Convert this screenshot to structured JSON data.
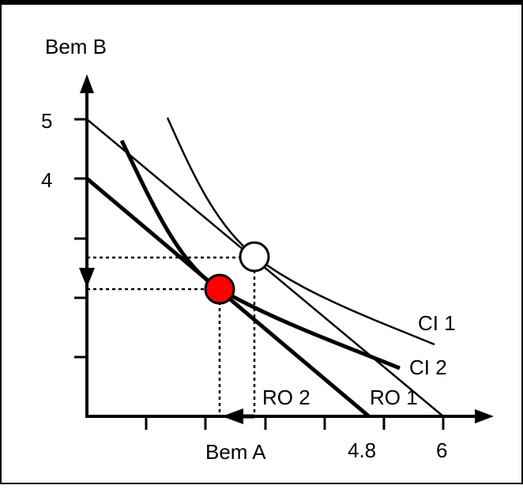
{
  "axis_labels": {
    "y": "Bem B",
    "x": "Bem A"
  },
  "tick_labels": {
    "y_5": "5",
    "y_4": "4",
    "x_48": "4.8",
    "x_6": "6"
  },
  "curve_labels": {
    "ci1": "CI 1",
    "ci2": "CI 2",
    "ro1": "RO  1",
    "ro2": "RO 2"
  },
  "colors": {
    "initial_optimum": "#ffffff",
    "new_optimum": "#ff0000",
    "lines": "#000000"
  }
}
